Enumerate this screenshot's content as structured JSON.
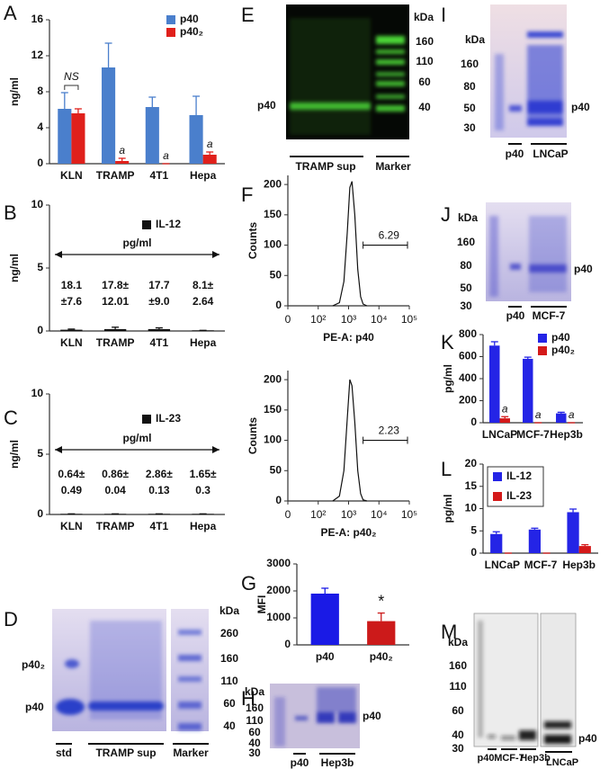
{
  "panel_letters": [
    "A",
    "B",
    "C",
    "D",
    "E",
    "F",
    "G",
    "H",
    "I",
    "J",
    "K",
    "L",
    "M"
  ],
  "chart_data": [
    {
      "type": "bar",
      "ylabel": "ng/ml",
      "categories": [
        "KLN",
        "TRAMP",
        "4T1",
        "Hepa"
      ],
      "series": [
        {
          "name": "p40",
          "color": "#4a7fcc",
          "values": [
            6.1,
            10.7,
            6.3,
            5.4
          ],
          "errors": [
            1.8,
            2.7,
            1.1,
            2.1
          ]
        },
        {
          "name": "p40₂",
          "color": "#e0201b",
          "values": [
            5.6,
            0.3,
            0,
            1.0
          ],
          "errors": [
            0.5,
            0.3,
            0,
            0.3
          ]
        }
      ],
      "ylim": [
        0,
        16
      ],
      "yticks": [
        0,
        4,
        8,
        12,
        16
      ],
      "legend": "upper right",
      "annotations": [
        "NS",
        "a",
        "a",
        "a"
      ]
    },
    {
      "type": "bar",
      "ylabel": "ng/ml",
      "categories": [
        "KLN",
        "TRAMP",
        "4T1",
        "Hepa"
      ],
      "series": [
        {
          "name": "IL-12",
          "color": "#111111",
          "values": [
            0.1,
            0.15,
            0.15,
            0.05
          ],
          "errors": [
            0.05,
            0.15,
            0.1,
            0
          ]
        }
      ],
      "ylim": [
        0,
        10
      ],
      "yticks": [
        0,
        5,
        10
      ],
      "legend": "upper center",
      "note": "pg/ml",
      "table": [
        [
          "18.1",
          "17.8±",
          "17.7",
          "8.1±"
        ],
        [
          "±7.6",
          "12.01",
          "±9.0",
          "2.64"
        ]
      ]
    },
    {
      "type": "bar",
      "ylabel": "ng/ml",
      "categories": [
        "KLN",
        "TRAMP",
        "4T1",
        "Hepa"
      ],
      "series": [
        {
          "name": "IL-23",
          "color": "#111111",
          "values": [
            0.05,
            0.05,
            0.05,
            0.05
          ],
          "errors": [
            0,
            0,
            0,
            0
          ]
        }
      ],
      "ylim": [
        0,
        10
      ],
      "yticks": [
        0,
        5,
        10
      ],
      "legend": "upper center",
      "note": "pg/ml",
      "table": [
        [
          "0.64±",
          "0.86±",
          "2.86±",
          "1.65±"
        ],
        [
          "0.49",
          "0.04",
          "0.13",
          "0.3"
        ]
      ]
    },
    {
      "type": "line",
      "ylabel": "Counts",
      "xlabel": "PE-A: p40",
      "x": [
        300,
        500,
        700,
        900,
        1100,
        1300,
        1600,
        2000,
        2500,
        3000,
        4000
      ],
      "series": [
        {
          "color": "#111111",
          "values": [
            0,
            5,
            40,
            120,
            195,
            205,
            150,
            60,
            15,
            3,
            0
          ]
        }
      ],
      "xlim": [
        0,
        100000
      ],
      "xticks": [
        0,
        {
          "value": 100,
          "label": "10²"
        },
        {
          "value": 1000,
          "label": "10³"
        },
        {
          "value": 10000,
          "label": "10⁴"
        },
        {
          "value": 100000,
          "label": "10⁵"
        }
      ],
      "ylim": [
        0,
        215
      ],
      "yticks": [
        0,
        50,
        100,
        150,
        200
      ],
      "gate_percent": 6.29
    },
    {
      "type": "line",
      "ylabel": "Counts",
      "xlabel": "PE-A: p40₂",
      "x": [
        300,
        500,
        700,
        900,
        1100,
        1300,
        1600,
        2000,
        2500,
        3000,
        4000
      ],
      "series": [
        {
          "color": "#111111",
          "values": [
            0,
            8,
            50,
            135,
            200,
            190,
            130,
            50,
            12,
            2,
            0
          ]
        }
      ],
      "xlim": [
        0,
        100000
      ],
      "xticks": [
        0,
        {
          "value": 100,
          "label": "10²"
        },
        {
          "value": 1000,
          "label": "10³"
        },
        {
          "value": 10000,
          "label": "10⁴"
        },
        {
          "value": 100000,
          "label": "10⁵"
        }
      ],
      "ylim": [
        0,
        215
      ],
      "yticks": [
        0,
        50,
        100,
        150,
        200
      ],
      "gate_percent": 2.23
    },
    {
      "type": "bar",
      "ylabel": "MFI",
      "categories": [
        "p40",
        "p40₂"
      ],
      "series": [
        {
          "values": [
            1900,
            880
          ],
          "errors": [
            200,
            300
          ]
        }
      ],
      "colors": [
        "#1a1ae6",
        "#cc1a1a"
      ],
      "ylim": [
        0,
        3000
      ],
      "yticks": [
        0,
        1000,
        2000,
        3000
      ],
      "annotations": [
        "*"
      ]
    },
    {
      "type": "bar",
      "ylabel": "pg/ml",
      "categories": [
        "LNCaP",
        "MCF-7",
        "Hep3b"
      ],
      "series": [
        {
          "name": "p40",
          "color": "#2424e6",
          "values": [
            700,
            580,
            85
          ],
          "errors": [
            35,
            15,
            10
          ]
        },
        {
          "name": "p40₂",
          "color": "#d41a1a",
          "values": [
            40,
            0,
            0
          ],
          "errors": [
            15,
            0,
            0
          ]
        }
      ],
      "ylim": [
        0,
        800
      ],
      "yticks": [
        0,
        200,
        400,
        600,
        800
      ],
      "legend": "upper right",
      "annotations": [
        "a",
        "a",
        "a"
      ]
    },
    {
      "type": "bar",
      "ylabel": "pg/ml",
      "categories": [
        "LNCaP",
        "MCF-7",
        "Hep3b"
      ],
      "series": [
        {
          "name": "IL-12",
          "color": "#2424e6",
          "values": [
            4.3,
            5.3,
            9.2
          ],
          "errors": [
            0.5,
            0.3,
            0.7
          ]
        },
        {
          "name": "IL-23",
          "color": "#d41a1a",
          "values": [
            0,
            0,
            1.6
          ],
          "errors": [
            0,
            0,
            0.3
          ]
        }
      ],
      "ylim": [
        0,
        20
      ],
      "yticks": [
        0,
        5,
        10,
        15,
        20
      ],
      "legend": "upper left"
    }
  ],
  "gels": {
    "D": {
      "kda": "kDa",
      "markers": [
        260,
        160,
        110,
        60,
        40
      ],
      "bands": [
        "p40₂",
        "p40"
      ],
      "lanes": [
        "std",
        "TRAMP sup",
        "Marker"
      ]
    },
    "E": {
      "kda": "kDa",
      "markers": [
        160,
        110,
        60,
        40
      ],
      "bands": [
        "p40"
      ],
      "lanes": [
        "TRAMP sup",
        "Marker"
      ]
    },
    "H": {
      "kda": "kDa",
      "markers": [
        160,
        110,
        60,
        40,
        30
      ],
      "bands": [
        "p40"
      ],
      "lanes": [
        "p40",
        "Hep3b"
      ]
    },
    "I": {
      "kda": "kDa",
      "markers": [
        160,
        80,
        50,
        30
      ],
      "bands": [
        "p40"
      ],
      "lanes": [
        "p40",
        "LNCaP"
      ]
    },
    "J": {
      "kda": "kDa",
      "markers": [
        160,
        80,
        50,
        30
      ],
      "bands": [
        "p40"
      ],
      "lanes": [
        "p40",
        "MCF-7"
      ]
    },
    "M": {
      "kda": "kDa",
      "markers": [
        160,
        110,
        60,
        40,
        30
      ],
      "bands": [
        "p40"
      ],
      "lanes": [
        "p40",
        "MCF-7",
        "Hep3b",
        "LNCaP"
      ]
    }
  }
}
